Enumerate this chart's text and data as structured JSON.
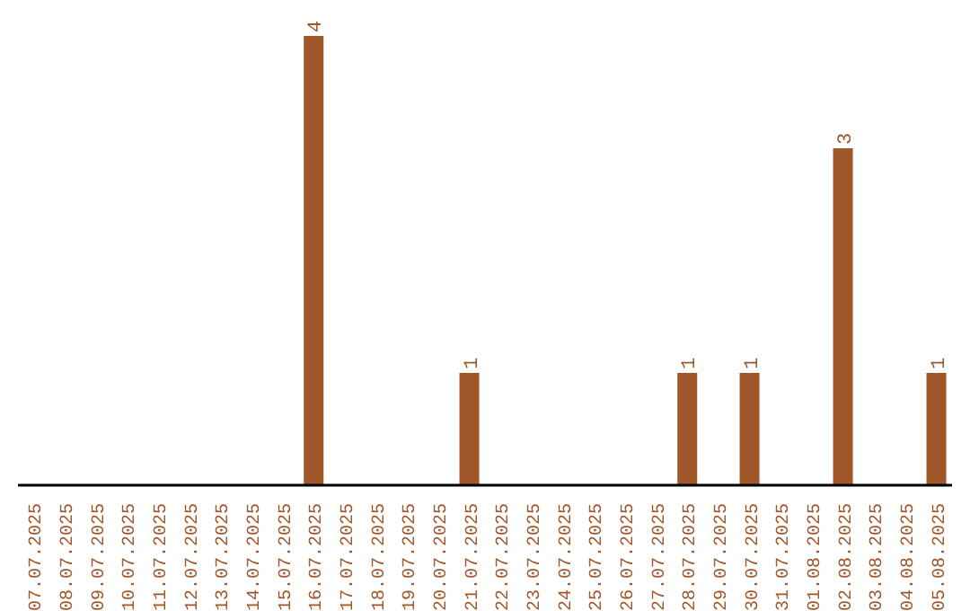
{
  "chart_data": {
    "type": "bar",
    "categories": [
      "07.07.2025",
      "08.07.2025",
      "09.07.2025",
      "10.07.2025",
      "11.07.2025",
      "12.07.2025",
      "13.07.2025",
      "14.07.2025",
      "15.07.2025",
      "16.07.2025",
      "17.07.2025",
      "18.07.2025",
      "19.07.2025",
      "20.07.2025",
      "21.07.2025",
      "22.07.2025",
      "23.07.2025",
      "24.07.2025",
      "25.07.2025",
      "26.07.2025",
      "27.07.2025",
      "28.07.2025",
      "29.07.2025",
      "30.07.2025",
      "31.07.2025",
      "01.08.2025",
      "02.08.2025",
      "03.08.2025",
      "04.08.2025",
      "05.08.2025"
    ],
    "values": [
      0,
      0,
      0,
      0,
      0,
      0,
      0,
      0,
      0,
      4,
      0,
      0,
      0,
      0,
      1,
      0,
      0,
      0,
      0,
      0,
      0,
      1,
      0,
      1,
      0,
      0,
      3,
      0,
      0,
      1
    ],
    "value_labels": [
      null,
      null,
      null,
      null,
      null,
      null,
      null,
      null,
      null,
      "4",
      null,
      null,
      null,
      null,
      "1",
      null,
      null,
      null,
      null,
      null,
      null,
      "1",
      null,
      "1",
      null,
      null,
      "3",
      null,
      null,
      "1"
    ],
    "color": "#a0572a",
    "tick_labels": "x",
    "grid": false,
    "legend": false
  }
}
